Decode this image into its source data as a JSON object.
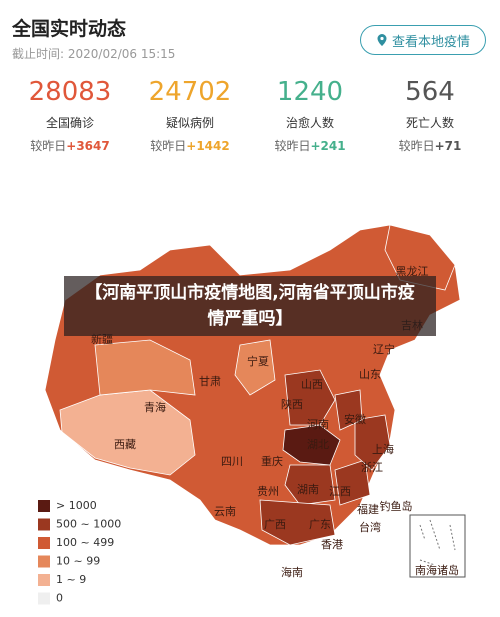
{
  "header": {
    "title": "全国实时动态",
    "updated": "截止时间: 2020/02/06 15:15",
    "button": "查看本地疫情"
  },
  "stats": [
    {
      "value": "28083",
      "label": "全国确诊",
      "change_label": "较昨日",
      "change": "+3647",
      "color": "#e0573a"
    },
    {
      "value": "24702",
      "label": "疑似病例",
      "change_label": "较昨日",
      "change": "+1442",
      "color": "#eea52c"
    },
    {
      "value": "1240",
      "label": "治愈人数",
      "change_label": "较昨日",
      "change": "+241",
      "color": "#45b08c"
    },
    {
      "value": "564",
      "label": "死亡人数",
      "change_label": "较昨日",
      "change": "+71",
      "color": "#555555"
    }
  ],
  "banner": "【河南平顶山市疫情地图,河南省平顶山市疫情严重吗】",
  "map": {
    "labels": [
      "黑龙江",
      "吉林",
      "辽宁",
      "新疆",
      "宁夏",
      "甘肃",
      "青海",
      "山西",
      "陕西",
      "山东",
      "河南",
      "西藏",
      "四川",
      "重庆",
      "湖北",
      "安徽",
      "上海",
      "浙江",
      "贵州",
      "湖南",
      "江西",
      "福建",
      "云南",
      "广西",
      "广东",
      "台湾",
      "香港",
      "钓鱼岛",
      "海南",
      "南海诸岛"
    ],
    "legend": [
      {
        "label": "> 1000",
        "color": "#5a1a12"
      },
      {
        "label": "500 ~ 1000",
        "color": "#9b3820"
      },
      {
        "label": "100 ~ 499",
        "color": "#d05a34"
      },
      {
        "label": "10 ~ 99",
        "color": "#e5875a"
      },
      {
        "label": "1 ~ 9",
        "color": "#f3b192"
      },
      {
        "label": "0",
        "color": "#efefef"
      }
    ]
  }
}
